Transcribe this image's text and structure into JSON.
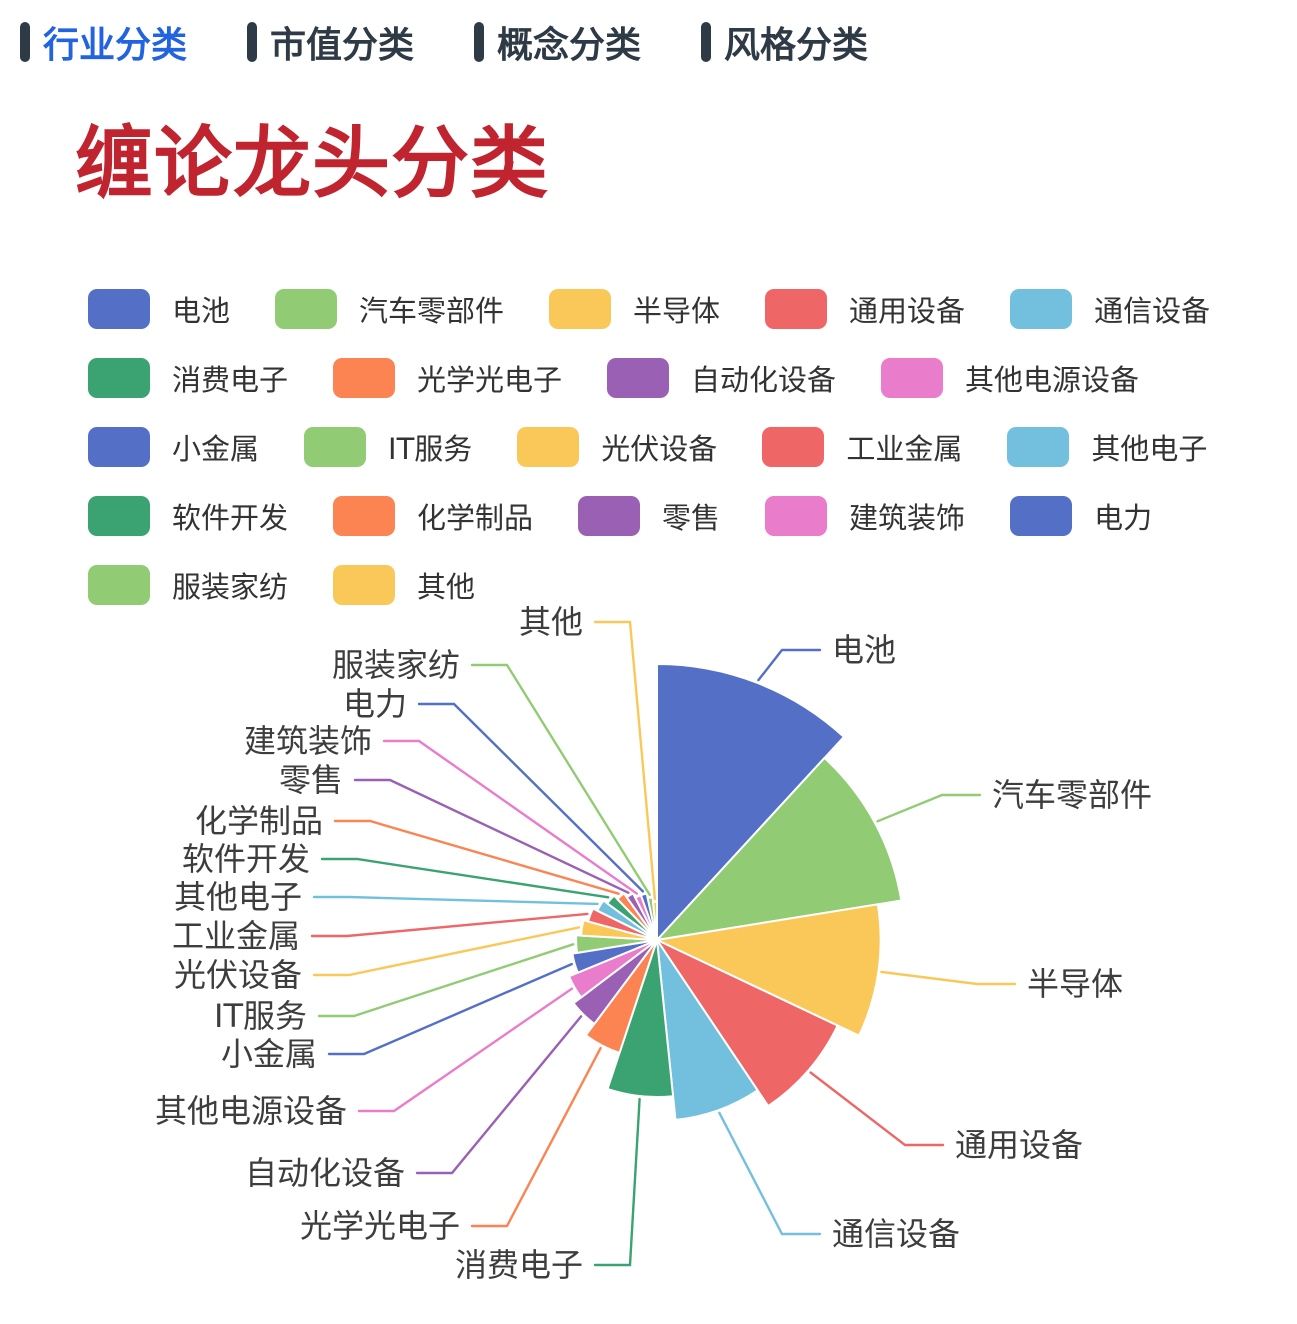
{
  "nav": {
    "tabs": [
      {
        "label": "行业分类",
        "active": true
      },
      {
        "label": "市值分类",
        "active": false
      },
      {
        "label": "概念分类",
        "active": false
      },
      {
        "label": "风格分类",
        "active": false
      }
    ]
  },
  "title": "缠论龙头分类",
  "colors": {
    "active_tab_blue": "#2263e0",
    "inactive_tab_dark": "#2e3a46",
    "title_red": "#c0242f",
    "legend_text": "#333333",
    "pie_label_text": "#3d3d3d",
    "palette": [
      "#5470c6",
      "#91cc75",
      "#fac858",
      "#ee6666",
      "#73c0de",
      "#3ba272",
      "#fc8452",
      "#9a60b4",
      "#ea7ccc"
    ]
  },
  "chart_data": {
    "type": "pie",
    "rose_type": "radius",
    "start_angle_deg": 0,
    "legend_position": "top",
    "categories": [
      "电池",
      "汽车零部件",
      "半导体",
      "通用设备",
      "通信设备",
      "消费电子",
      "光学光电子",
      "自动化设备",
      "其他电源设备",
      "小金属",
      "IT服务",
      "光伏设备",
      "工业金属",
      "其他电子",
      "软件开发",
      "化学制品",
      "零售",
      "建筑装饰",
      "电力",
      "服装家纺",
      "其他"
    ],
    "values": [
      58,
      52,
      47,
      42,
      38,
      33,
      25,
      22,
      20,
      18,
      17,
      16,
      15,
      14,
      13,
      12,
      11,
      10,
      10,
      9,
      8
    ],
    "values_note": "estimated from sector angles/radii; no numeric labels shown in image"
  }
}
